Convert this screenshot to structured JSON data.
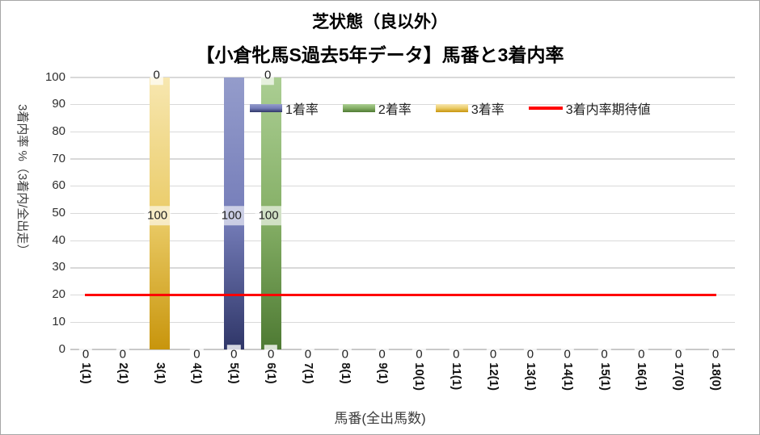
{
  "chart_data": {
    "type": "bar",
    "subtype": "stacked-column-with-line",
    "title": "芝状態（良以外）",
    "subtitle": "【小倉牝馬S過去5年データ】馬番と3着内率",
    "xlabel": "馬番(全出馬数)",
    "ylabel": "3着内率 %（3着内/全出走）",
    "ylim": [
      0,
      100
    ],
    "ytick_step": 10,
    "yticks": [
      0,
      10,
      20,
      30,
      40,
      50,
      60,
      70,
      80,
      90,
      100
    ],
    "grid": true,
    "legend_position": "inside-top",
    "categories": [
      "1(1)",
      "2(1)",
      "3(1)",
      "4(1)",
      "5(1)",
      "6(1)",
      "7(1)",
      "8(1)",
      "9(1)",
      "10(1)",
      "11(1)",
      "12(1)",
      "13(1)",
      "14(1)",
      "15(1)",
      "16(1)",
      "17(0)",
      "18(0)"
    ],
    "series": [
      {
        "name": "1着率",
        "type": "column",
        "values": [
          0,
          0,
          0,
          0,
          100,
          0,
          0,
          0,
          0,
          0,
          0,
          0,
          0,
          0,
          0,
          0,
          0,
          0
        ],
        "color_top": "#949CCB",
        "color_mid": "#757DB9",
        "color_bottom": "#2F3668"
      },
      {
        "name": "2着率",
        "type": "column",
        "values": [
          0,
          0,
          0,
          0,
          0,
          100,
          0,
          0,
          0,
          0,
          0,
          0,
          0,
          0,
          0,
          0,
          0,
          0
        ],
        "color_top": "#ABCE93",
        "color_mid": "#85AF66",
        "color_bottom": "#4E7A33"
      },
      {
        "name": "3着率",
        "type": "column",
        "values": [
          0,
          0,
          100,
          0,
          0,
          0,
          0,
          0,
          0,
          0,
          0,
          0,
          0,
          0,
          0,
          0,
          0,
          0
        ],
        "color_top": "#F7E7B0",
        "color_mid": "#EACB67",
        "color_bottom": "#C8950C"
      }
    ],
    "line_series": {
      "name": "3着内率期待値",
      "color": "#FF0000",
      "value": 20
    },
    "visible_data_labels": [
      {
        "category_index": 2,
        "position": "top",
        "text": "0"
      },
      {
        "category_index": 5,
        "position": "top",
        "text": "0"
      },
      {
        "category_index": 2,
        "position": "middle",
        "text": "100"
      },
      {
        "category_index": 4,
        "position": "middle",
        "text": "100"
      },
      {
        "category_index": 5,
        "position": "middle",
        "text": "100"
      },
      {
        "category_index": 0,
        "position": "base",
        "text": "0"
      },
      {
        "category_index": 1,
        "position": "base",
        "text": "0"
      },
      {
        "category_index": 3,
        "position": "base",
        "text": "0"
      },
      {
        "category_index": 4,
        "position": "base",
        "text": "0"
      },
      {
        "category_index": 5,
        "position": "base",
        "text": "0"
      },
      {
        "category_index": 6,
        "position": "base",
        "text": "0"
      },
      {
        "category_index": 7,
        "position": "base",
        "text": "0"
      },
      {
        "category_index": 8,
        "position": "base",
        "text": "0"
      },
      {
        "category_index": 9,
        "position": "base",
        "text": "0"
      },
      {
        "category_index": 10,
        "position": "base",
        "text": "0"
      },
      {
        "category_index": 11,
        "position": "base",
        "text": "0"
      },
      {
        "category_index": 12,
        "position": "base",
        "text": "0"
      },
      {
        "category_index": 13,
        "position": "base",
        "text": "0"
      },
      {
        "category_index": 14,
        "position": "base",
        "text": "0"
      },
      {
        "category_index": 15,
        "position": "base",
        "text": "0"
      },
      {
        "category_index": 16,
        "position": "base",
        "text": "0"
      },
      {
        "category_index": 17,
        "position": "base",
        "text": "0"
      }
    ],
    "colors": {
      "gridline": "#D9D9D9",
      "axis_line": "#C9C9C9",
      "text": "#303030",
      "title": "#000000",
      "expect_line": "#FF0000",
      "label_bg": "#FFFFFF"
    }
  }
}
